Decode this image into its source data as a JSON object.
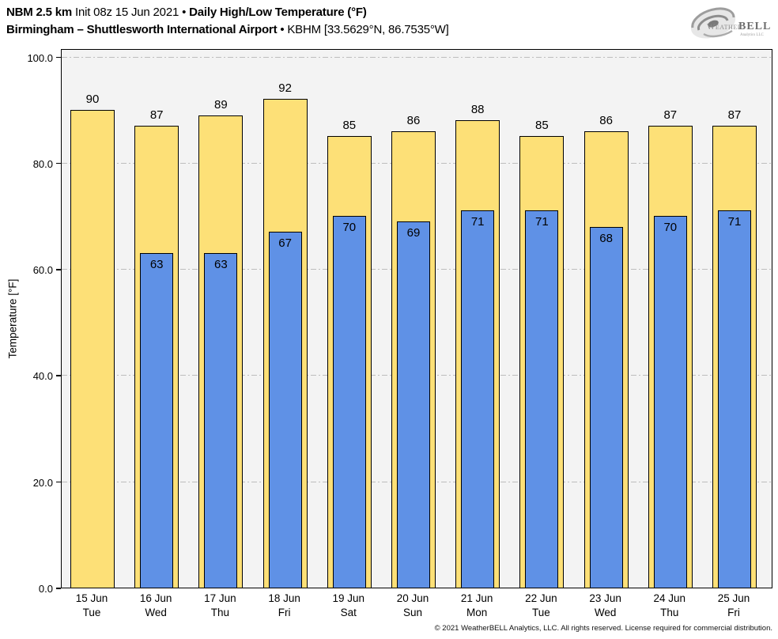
{
  "header": {
    "model": "NBM 2.5 km",
    "init": "Init 08z 15 Jun 2021",
    "bullet": "•",
    "product": "Daily High/Low Temperature (°F)",
    "station": "Birmingham – Shuttlesworth International Airport",
    "station_id": "KBHM [33.5629°N, 86.7535°W]"
  },
  "logo": {
    "weather": "Weather",
    "bell": "BELL",
    "analytics": "Analytics LLC"
  },
  "chart_data": {
    "type": "bar",
    "title": "Daily High/Low Temperature (°F)",
    "xlabel": "",
    "ylabel": "Temperature [°F]",
    "ylim": [
      0,
      101.6
    ],
    "yticks": [
      0,
      20,
      40,
      60,
      80,
      100
    ],
    "ytick_labels": [
      "0.0",
      "20.0",
      "40.0",
      "60.0",
      "80.0",
      "100.0"
    ],
    "grid": "horizontal dash-dot",
    "legend": false,
    "categories": [
      "15 Jun",
      "16 Jun",
      "17 Jun",
      "18 Jun",
      "19 Jun",
      "20 Jun",
      "21 Jun",
      "22 Jun",
      "23 Jun",
      "24 Jun",
      "25 Jun"
    ],
    "weekdays": [
      "Tue",
      "Wed",
      "Thu",
      "Fri",
      "Sat",
      "Sun",
      "Mon",
      "Tue",
      "Wed",
      "Thu",
      "Fri"
    ],
    "series": [
      {
        "name": "Daily High",
        "color": "#FDE077",
        "values": [
          90,
          87,
          89,
          92,
          85,
          86,
          88,
          85,
          86,
          87,
          87
        ]
      },
      {
        "name": "Daily Low",
        "color": "#5F91E6",
        "values": [
          null,
          63,
          63,
          67,
          70,
          69,
          71,
          71,
          68,
          70,
          71
        ]
      }
    ]
  },
  "footer": {
    "copyright": "© 2021 WeatherBELL Analytics, LLC. All rights reserved. License required for commercial distribution."
  },
  "colors": {
    "page_bg": "#FFFFFF",
    "plot_bg": "#F3F3F3",
    "grid": "#BDBDBD",
    "bar_border": "#000000",
    "high_fill": "#FDE077",
    "low_fill": "#5F91E6",
    "text": "#000000"
  }
}
